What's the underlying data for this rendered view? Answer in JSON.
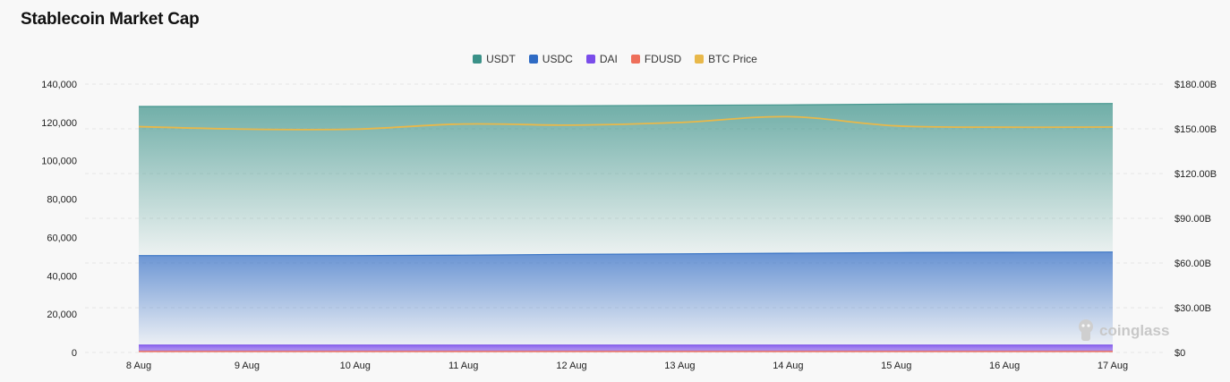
{
  "title": "Stablecoin Market Cap",
  "watermark": "coinglass",
  "legend": [
    {
      "label": "USDT",
      "color": "#3a9188"
    },
    {
      "label": "USDC",
      "color": "#2f6bc4"
    },
    {
      "label": "DAI",
      "color": "#7a4dea"
    },
    {
      "label": "FDUSD",
      "color": "#ee6f5a"
    },
    {
      "label": "BTC Price",
      "color": "#e8b84a"
    }
  ],
  "chart_data": {
    "type": "area",
    "title": "Stablecoin Market Cap",
    "categories": [
      "8 Aug",
      "9 Aug",
      "10 Aug",
      "11 Aug",
      "12 Aug",
      "13 Aug",
      "14 Aug",
      "15 Aug",
      "16 Aug",
      "17 Aug"
    ],
    "left_axis": {
      "ticks": [
        "140,000",
        "120,000",
        "100,000",
        "80,000",
        "60,000",
        "40,000",
        "20,000",
        "0"
      ],
      "ylim": [
        0,
        140000
      ]
    },
    "right_axis": {
      "ticks": [
        "$180.00B",
        "$150.00B",
        "$120.00B",
        "$90.00B",
        "$60.00B",
        "$30.00B",
        "$0"
      ],
      "ylim": [
        0,
        180
      ]
    },
    "stacked": true,
    "series": [
      {
        "name": "FDUSD",
        "axis": "right",
        "color": "#ee6f5a",
        "values": [
          1.0,
          1.0,
          1.0,
          1.0,
          1.0,
          1.0,
          1.0,
          1.0,
          1.0,
          1.0
        ]
      },
      {
        "name": "DAI",
        "axis": "right",
        "color": "#7a4dea",
        "values": [
          4.0,
          4.0,
          4.0,
          4.0,
          4.0,
          4.0,
          4.0,
          4.0,
          4.0,
          4.0
        ]
      },
      {
        "name": "USDC",
        "axis": "right",
        "color": "#2f6bc4",
        "values": [
          60.0,
          60.0,
          60.0,
          60.3,
          60.8,
          61.2,
          61.6,
          62.0,
          62.2,
          62.4
        ]
      },
      {
        "name": "USDT",
        "axis": "right",
        "color": "#3a9188",
        "values": [
          100.0,
          100.1,
          100.2,
          100.1,
          99.7,
          99.6,
          99.5,
          99.6,
          99.6,
          99.6
        ]
      },
      {
        "name": "BTC Price",
        "type": "line",
        "axis": "left",
        "color": "#e8b84a",
        "values": [
          117800,
          116500,
          116500,
          119200,
          118600,
          120000,
          123000,
          118200,
          117500,
          117600
        ]
      }
    ],
    "grid": true,
    "legend_position": "top-center"
  }
}
